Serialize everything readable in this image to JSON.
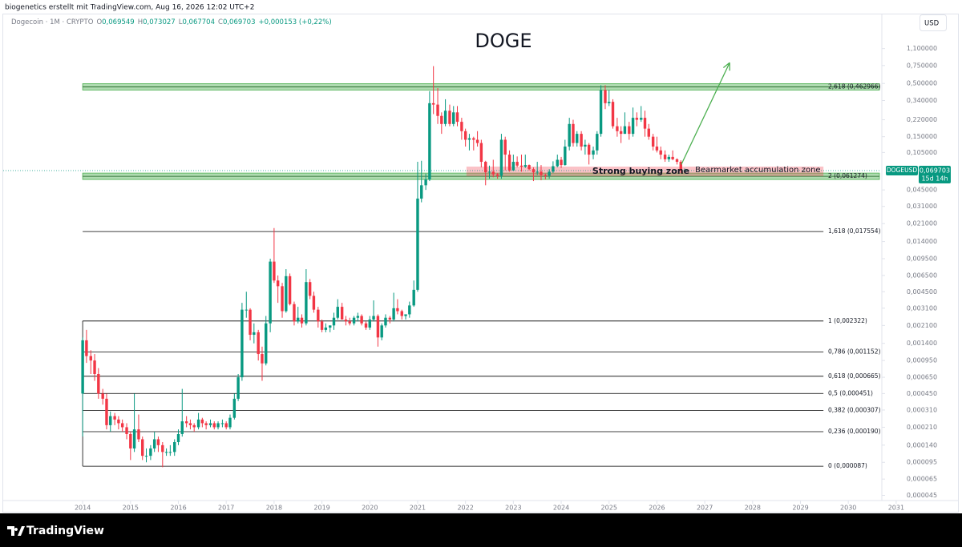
{
  "chart_data": {
    "type": "candlestick",
    "attribution": "biogenetics erstellt mit TradingView.com, Aug 16, 2026 12:02 UTC+2",
    "title": "DOGE",
    "currency": "USD",
    "brand": "TradingView",
    "symbol_line": "Dogecoin · 1M · CRYPTO",
    "ohlc_header": [
      {
        "key": "O",
        "value": "0,069549"
      },
      {
        "key": "H",
        "value": "0,073027"
      },
      {
        "key": "L",
        "value": "0,067704"
      },
      {
        "key": "C",
        "value": "0,069703"
      },
      {
        "key": "",
        "value": "+0,000153 (+0,22%)"
      }
    ],
    "log_scale": true,
    "grid": false,
    "up_color": "#089981",
    "down_color": "#f23645",
    "xlim": [
      2012.44,
      2030.65
    ],
    "xticks": [
      2014,
      2015,
      2016,
      2017,
      2018,
      2019,
      2020,
      2021,
      2022,
      2023,
      2024,
      2025,
      2026,
      2027,
      2028,
      2029,
      2030,
      2031
    ],
    "ylim": [
      4e-05,
      1.6
    ],
    "yticks": [
      {
        "value": 1.1,
        "label": "1,100000"
      },
      {
        "value": 0.75,
        "label": "0,750000"
      },
      {
        "value": 0.5,
        "label": "0,500000"
      },
      {
        "value": 0.34,
        "label": "0,340000"
      },
      {
        "value": 0.22,
        "label": "0,220000"
      },
      {
        "value": 0.15,
        "label": "0,150000"
      },
      {
        "value": 0.105,
        "label": "0,105000"
      },
      {
        "value": 0.045,
        "label": "0,045000"
      },
      {
        "value": 0.031,
        "label": "0,031000"
      },
      {
        "value": 0.021,
        "label": "0,021000"
      },
      {
        "value": 0.014,
        "label": "0,014000"
      },
      {
        "value": 0.0095,
        "label": "0,009500"
      },
      {
        "value": 0.0065,
        "label": "0,006500"
      },
      {
        "value": 0.0045,
        "label": "0,004500"
      },
      {
        "value": 0.0031,
        "label": "0,003100"
      },
      {
        "value": 0.0021,
        "label": "0,002100"
      },
      {
        "value": 0.0014,
        "label": "0,001400"
      },
      {
        "value": 0.00095,
        "label": "0,000950"
      },
      {
        "value": 0.00065,
        "label": "0,000650"
      },
      {
        "value": 0.00045,
        "label": "0,000450"
      },
      {
        "value": 0.00031,
        "label": "0,000310"
      },
      {
        "value": 0.00021,
        "label": "0,000210"
      },
      {
        "value": 0.00014,
        "label": "0,000140"
      },
      {
        "value": 9.5e-05,
        "label": "0,000095"
      },
      {
        "value": 6.5e-05,
        "label": "0,000065"
      },
      {
        "value": 4.5e-05,
        "label": "0,000045"
      }
    ],
    "last_price": {
      "value": 0.069703,
      "label": "0,069703",
      "symbol": "DOGEUSD",
      "countdown": "15d 14h"
    },
    "fib": {
      "x": [
        2014.0,
        2029.48
      ],
      "levels": [
        {
          "value": 0.462966,
          "label": "2,618 (0,462966)",
          "highlight": true
        },
        {
          "value": 0.061274,
          "label": "2 (0,061274)",
          "highlight": true
        },
        {
          "value": 0.017554,
          "label": "1,618 (0,017554)",
          "highlight": false
        },
        {
          "value": 0.002322,
          "label": "1 (0,002322)",
          "highlight": false
        },
        {
          "value": 0.001152,
          "label": "0,786 (0,001152)",
          "highlight": false
        },
        {
          "value": 0.000665,
          "label": "0,618 (0,000665)",
          "highlight": false
        },
        {
          "value": 0.000451,
          "label": "0,5 (0,000451)",
          "highlight": false
        },
        {
          "value": 0.000307,
          "label": "0,382 (0,000307)",
          "highlight": false
        },
        {
          "value": 0.00019,
          "label": "0,236 (0,000190)",
          "highlight": false
        },
        {
          "value": 8.7e-05,
          "label": "0 (0,000087)",
          "highlight": false
        }
      ]
    },
    "zone": {
      "label": "Strong buying zone",
      "x": [
        2022.02,
        2029.48
      ],
      "y": [
        0.061274,
        0.0763
      ]
    },
    "zone_note": {
      "label": "Bearmarket accumulation zone",
      "x": 2026.8,
      "y": 0.0695
    },
    "arrow": {
      "x": [
        2026.51,
        2027.52
      ],
      "y": [
        0.08,
        0.8
      ],
      "color": "#4caf50"
    },
    "candles": [
      [
        2014.0,
        0.00045,
        0.0016,
        0.00017,
        0.0015
      ],
      [
        2014.08,
        0.0015,
        0.0019,
        0.0009,
        0.00105
      ],
      [
        2014.17,
        0.00105,
        0.0012,
        0.0007,
        0.00095
      ],
      [
        2014.25,
        0.00095,
        0.0011,
        0.0006,
        0.0007
      ],
      [
        2014.33,
        0.0007,
        0.0008,
        0.0004,
        0.00045
      ],
      [
        2014.42,
        0.00045,
        0.0005,
        0.00035,
        0.0004
      ],
      [
        2014.5,
        0.0004,
        0.00045,
        0.0002,
        0.00022
      ],
      [
        2014.58,
        0.00022,
        0.0003,
        0.00019,
        0.00027
      ],
      [
        2014.67,
        0.00027,
        0.00029,
        0.00022,
        0.00025
      ],
      [
        2014.75,
        0.00025,
        0.00027,
        0.0002,
        0.00023
      ],
      [
        2014.83,
        0.00023,
        0.00025,
        0.00019,
        0.00021
      ],
      [
        2014.92,
        0.00021,
        0.00023,
        0.00016,
        0.00018
      ],
      [
        2015.0,
        0.00018,
        0.00019,
        0.0001,
        0.00013
      ],
      [
        2015.08,
        0.00013,
        0.00045,
        0.00012,
        0.0002
      ],
      [
        2015.17,
        0.0002,
        0.00028,
        0.00015,
        0.00016
      ],
      [
        2015.25,
        0.00016,
        0.00017,
        0.0001,
        0.00011
      ],
      [
        2015.33,
        0.00011,
        0.00013,
        9.5e-05,
        0.00011
      ],
      [
        2015.42,
        0.00011,
        0.00014,
        0.0001,
        0.00013
      ],
      [
        2015.5,
        0.00013,
        0.00019,
        0.00012,
        0.00016
      ],
      [
        2015.58,
        0.00016,
        0.00017,
        0.00012,
        0.00014
      ],
      [
        2015.67,
        0.00014,
        0.00015,
        8.5e-05,
        0.00012
      ],
      [
        2015.75,
        0.00012,
        0.00013,
        0.00011,
        0.00012
      ],
      [
        2015.83,
        0.00012,
        0.00014,
        0.00011,
        0.00012
      ],
      [
        2015.92,
        0.00012,
        0.00016,
        0.00011,
        0.00015
      ],
      [
        2016.0,
        0.00015,
        0.0002,
        0.00014,
        0.00018
      ],
      [
        2016.08,
        0.00018,
        0.0005,
        0.00017,
        0.00024
      ],
      [
        2016.17,
        0.00024,
        0.00027,
        0.00021,
        0.00023
      ],
      [
        2016.25,
        0.00023,
        0.00025,
        0.0002,
        0.00022
      ],
      [
        2016.33,
        0.00022,
        0.00023,
        0.00019,
        0.00021
      ],
      [
        2016.42,
        0.00021,
        0.00029,
        0.0002,
        0.00025
      ],
      [
        2016.5,
        0.00025,
        0.00026,
        0.00021,
        0.00023
      ],
      [
        2016.58,
        0.00023,
        0.00024,
        0.0002,
        0.00022
      ],
      [
        2016.67,
        0.00022,
        0.00025,
        0.00021,
        0.00023
      ],
      [
        2016.75,
        0.00023,
        0.00024,
        0.0002,
        0.00021
      ],
      [
        2016.83,
        0.00021,
        0.00024,
        0.0002,
        0.00023
      ],
      [
        2016.92,
        0.00023,
        0.00025,
        0.00021,
        0.00023
      ],
      [
        2017.0,
        0.00023,
        0.00024,
        0.0002,
        0.00021
      ],
      [
        2017.08,
        0.00021,
        0.00028,
        0.0002,
        0.00026
      ],
      [
        2017.17,
        0.00026,
        0.00045,
        0.00025,
        0.0004
      ],
      [
        2017.25,
        0.0004,
        0.0007,
        0.00038,
        0.00065
      ],
      [
        2017.33,
        0.00065,
        0.0035,
        0.0006,
        0.003
      ],
      [
        2017.42,
        0.003,
        0.0045,
        0.0025,
        0.003
      ],
      [
        2017.5,
        0.003,
        0.0031,
        0.0015,
        0.0017
      ],
      [
        2017.58,
        0.0017,
        0.0022,
        0.0014,
        0.0018
      ],
      [
        2017.67,
        0.0018,
        0.0019,
        0.00095,
        0.0011
      ],
      [
        2017.75,
        0.0011,
        0.0013,
        0.0006,
        0.00089
      ],
      [
        2017.83,
        0.00089,
        0.0026,
        0.00085,
        0.0022
      ],
      [
        2017.92,
        0.0022,
        0.0095,
        0.0018,
        0.0089
      ],
      [
        2018.0,
        0.0089,
        0.019,
        0.0055,
        0.0058
      ],
      [
        2018.08,
        0.0058,
        0.0065,
        0.0035,
        0.0051
      ],
      [
        2018.17,
        0.0051,
        0.0055,
        0.0025,
        0.0029
      ],
      [
        2018.25,
        0.0029,
        0.0075,
        0.0028,
        0.0064
      ],
      [
        2018.33,
        0.0064,
        0.0068,
        0.0033,
        0.0034
      ],
      [
        2018.42,
        0.0034,
        0.0036,
        0.0021,
        0.0023
      ],
      [
        2018.5,
        0.0023,
        0.0032,
        0.0022,
        0.0025
      ],
      [
        2018.58,
        0.0025,
        0.0027,
        0.002,
        0.0022
      ],
      [
        2018.67,
        0.0022,
        0.0075,
        0.0021,
        0.0056
      ],
      [
        2018.75,
        0.0056,
        0.006,
        0.0038,
        0.0041
      ],
      [
        2018.83,
        0.0041,
        0.0045,
        0.0028,
        0.003
      ],
      [
        2018.92,
        0.003,
        0.0032,
        0.002,
        0.0023
      ],
      [
        2019.0,
        0.0023,
        0.0024,
        0.0018,
        0.0019
      ],
      [
        2019.08,
        0.0019,
        0.0022,
        0.0018,
        0.002
      ],
      [
        2019.17,
        0.002,
        0.0021,
        0.0018,
        0.0021
      ],
      [
        2019.25,
        0.0021,
        0.0028,
        0.0019,
        0.0025
      ],
      [
        2019.33,
        0.0025,
        0.0038,
        0.0024,
        0.0032
      ],
      [
        2019.42,
        0.0032,
        0.0035,
        0.0024,
        0.0024
      ],
      [
        2019.5,
        0.0024,
        0.0026,
        0.0021,
        0.0023
      ],
      [
        2019.58,
        0.0023,
        0.0025,
        0.0021,
        0.0022
      ],
      [
        2019.67,
        0.0022,
        0.0026,
        0.0021,
        0.0025
      ],
      [
        2019.75,
        0.0025,
        0.0028,
        0.0023,
        0.0026
      ],
      [
        2019.83,
        0.0026,
        0.0027,
        0.0021,
        0.0022
      ],
      [
        2019.92,
        0.0022,
        0.0023,
        0.0019,
        0.002
      ],
      [
        2020.0,
        0.002,
        0.0026,
        0.0019,
        0.0024
      ],
      [
        2020.08,
        0.0024,
        0.0037,
        0.0023,
        0.0026
      ],
      [
        2020.17,
        0.0026,
        0.0027,
        0.0013,
        0.0016
      ],
      [
        2020.25,
        0.0016,
        0.0022,
        0.0015,
        0.0021
      ],
      [
        2020.33,
        0.0021,
        0.0027,
        0.002,
        0.0025
      ],
      [
        2020.42,
        0.0025,
        0.0026,
        0.0022,
        0.0024
      ],
      [
        2020.5,
        0.0024,
        0.0044,
        0.0023,
        0.0031
      ],
      [
        2020.58,
        0.0031,
        0.0038,
        0.0027,
        0.0029
      ],
      [
        2020.67,
        0.0029,
        0.003,
        0.0024,
        0.0026
      ],
      [
        2020.75,
        0.0026,
        0.0027,
        0.0024,
        0.0027
      ],
      [
        2020.83,
        0.0027,
        0.0036,
        0.0025,
        0.0033
      ],
      [
        2020.92,
        0.0033,
        0.0058,
        0.0032,
        0.0047
      ],
      [
        2021.0,
        0.0047,
        0.085,
        0.0045,
        0.037
      ],
      [
        2021.08,
        0.037,
        0.087,
        0.034,
        0.05
      ],
      [
        2021.17,
        0.05,
        0.065,
        0.045,
        0.057
      ],
      [
        2021.25,
        0.057,
        0.42,
        0.055,
        0.32
      ],
      [
        2021.33,
        0.32,
        0.74,
        0.25,
        0.31
      ],
      [
        2021.42,
        0.31,
        0.45,
        0.2,
        0.24
      ],
      [
        2021.5,
        0.24,
        0.26,
        0.16,
        0.2
      ],
      [
        2021.58,
        0.2,
        0.35,
        0.19,
        0.27
      ],
      [
        2021.67,
        0.27,
        0.31,
        0.19,
        0.2
      ],
      [
        2021.75,
        0.2,
        0.3,
        0.19,
        0.26
      ],
      [
        2021.83,
        0.26,
        0.3,
        0.19,
        0.21
      ],
      [
        2021.92,
        0.21,
        0.23,
        0.14,
        0.17
      ],
      [
        2022.0,
        0.17,
        0.18,
        0.12,
        0.14
      ],
      [
        2022.08,
        0.14,
        0.16,
        0.11,
        0.145
      ],
      [
        2022.17,
        0.145,
        0.15,
        0.11,
        0.14
      ],
      [
        2022.25,
        0.14,
        0.17,
        0.12,
        0.13
      ],
      [
        2022.33,
        0.13,
        0.14,
        0.075,
        0.085
      ],
      [
        2022.42,
        0.085,
        0.087,
        0.05,
        0.067
      ],
      [
        2022.5,
        0.067,
        0.078,
        0.058,
        0.068
      ],
      [
        2022.58,
        0.068,
        0.089,
        0.06,
        0.064
      ],
      [
        2022.67,
        0.064,
        0.066,
        0.058,
        0.062
      ],
      [
        2022.75,
        0.062,
        0.16,
        0.058,
        0.14
      ],
      [
        2022.83,
        0.14,
        0.15,
        0.07,
        0.1
      ],
      [
        2022.92,
        0.1,
        0.11,
        0.068,
        0.07
      ],
      [
        2023.0,
        0.07,
        0.1,
        0.069,
        0.085
      ],
      [
        2023.08,
        0.085,
        0.096,
        0.075,
        0.078
      ],
      [
        2023.17,
        0.078,
        0.1,
        0.068,
        0.076
      ],
      [
        2023.25,
        0.076,
        0.1,
        0.074,
        0.079
      ],
      [
        2023.33,
        0.079,
        0.08,
        0.07,
        0.072
      ],
      [
        2023.42,
        0.072,
        0.075,
        0.055,
        0.067
      ],
      [
        2023.5,
        0.067,
        0.085,
        0.063,
        0.068
      ],
      [
        2023.58,
        0.068,
        0.079,
        0.056,
        0.063
      ],
      [
        2023.67,
        0.063,
        0.065,
        0.057,
        0.062
      ],
      [
        2023.75,
        0.062,
        0.072,
        0.058,
        0.068
      ],
      [
        2023.83,
        0.068,
        0.086,
        0.066,
        0.077
      ],
      [
        2023.92,
        0.077,
        0.1,
        0.075,
        0.089
      ],
      [
        2024.0,
        0.089,
        0.095,
        0.074,
        0.079
      ],
      [
        2024.08,
        0.079,
        0.14,
        0.078,
        0.12
      ],
      [
        2024.17,
        0.12,
        0.23,
        0.11,
        0.2
      ],
      [
        2024.25,
        0.2,
        0.22,
        0.12,
        0.13
      ],
      [
        2024.33,
        0.13,
        0.17,
        0.12,
        0.16
      ],
      [
        2024.42,
        0.16,
        0.17,
        0.11,
        0.12
      ],
      [
        2024.5,
        0.12,
        0.14,
        0.1,
        0.125
      ],
      [
        2024.58,
        0.125,
        0.13,
        0.08,
        0.1
      ],
      [
        2024.67,
        0.1,
        0.12,
        0.09,
        0.11
      ],
      [
        2024.75,
        0.11,
        0.17,
        0.1,
        0.16
      ],
      [
        2024.83,
        0.16,
        0.48,
        0.15,
        0.43
      ],
      [
        2024.92,
        0.43,
        0.48,
        0.28,
        0.32
      ],
      [
        2025.0,
        0.32,
        0.43,
        0.3,
        0.33
      ],
      [
        2025.08,
        0.33,
        0.35,
        0.18,
        0.19
      ],
      [
        2025.17,
        0.19,
        0.23,
        0.15,
        0.17
      ],
      [
        2025.25,
        0.17,
        0.19,
        0.13,
        0.16
      ],
      [
        2025.33,
        0.16,
        0.26,
        0.16,
        0.19
      ],
      [
        2025.42,
        0.19,
        0.21,
        0.14,
        0.16
      ],
      [
        2025.5,
        0.16,
        0.29,
        0.15,
        0.23
      ],
      [
        2025.58,
        0.23,
        0.26,
        0.19,
        0.22
      ],
      [
        2025.67,
        0.22,
        0.3,
        0.21,
        0.23
      ],
      [
        2025.75,
        0.23,
        0.27,
        0.15,
        0.18
      ],
      [
        2025.83,
        0.18,
        0.2,
        0.14,
        0.15
      ],
      [
        2025.92,
        0.15,
        0.16,
        0.11,
        0.12
      ],
      [
        2026.0,
        0.12,
        0.15,
        0.105,
        0.11
      ],
      [
        2026.08,
        0.11,
        0.12,
        0.09,
        0.1
      ],
      [
        2026.17,
        0.1,
        0.11,
        0.085,
        0.09
      ],
      [
        2026.25,
        0.09,
        0.1,
        0.085,
        0.095
      ],
      [
        2026.33,
        0.095,
        0.11,
        0.088,
        0.09
      ],
      [
        2026.42,
        0.09,
        0.092,
        0.08,
        0.085
      ],
      [
        2026.5,
        0.085,
        0.088,
        0.066,
        0.069549
      ],
      [
        2026.58,
        0.069549,
        0.073027,
        0.067704,
        0.069703
      ]
    ]
  }
}
